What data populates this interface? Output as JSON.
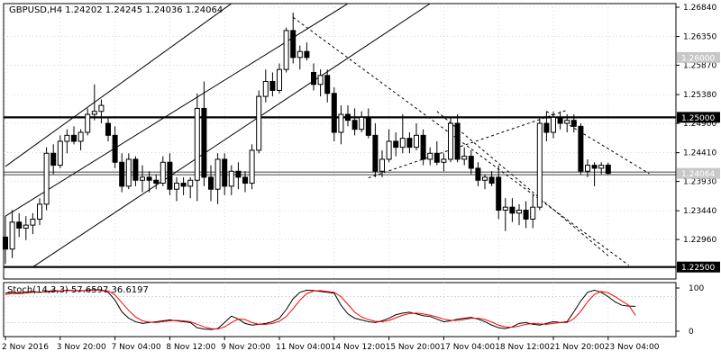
{
  "header": {
    "symbol_line": "GBPUSD,H4  1.24202 1.24245 1.24036 1.24064"
  },
  "colors": {
    "background": "#ffffff",
    "candle": "#000000",
    "grid": "#c0c0c0",
    "stoch_main": "#000000",
    "stoch_signal": "#ff0000",
    "label_bg_gray": "#c8c8c8",
    "label_bg_black": "#000000"
  },
  "chart_data": [
    {
      "type": "candlestick",
      "title": "GBPUSD,H4",
      "ohlc_last": {
        "open": 1.24202,
        "high": 1.24245,
        "low": 1.24036,
        "close": 1.24064
      },
      "ylim": [
        1.223,
        1.269
      ],
      "y_ticks": [
        "1.26840",
        "1.26350",
        "1.25870",
        "1.25380",
        "1.24900",
        "1.24410",
        "1.23930",
        "1.23440",
        "1.22960"
      ],
      "y_tick_values": [
        1.2684,
        1.2635,
        1.2587,
        1.2538,
        1.249,
        1.2441,
        1.2393,
        1.2344,
        1.2296
      ],
      "x_ticks": [
        "2 Nov 2016",
        "3 Nov 20:00",
        "7 Nov 04:00",
        "8 Nov 12:00",
        "9 Nov 20:00",
        "11 Nov 04:00",
        "14 Nov 12:00",
        "15 Nov 20:00",
        "17 Nov 04:00",
        "18 Nov 12:00",
        "21 Nov 20:00",
        "23 Nov 04:00"
      ],
      "x_tick_index": [
        0,
        8,
        16,
        24,
        32,
        40,
        48,
        56,
        64,
        72,
        80,
        88
      ],
      "price_labels": [
        {
          "text": "1.26000",
          "value": 1.26,
          "style": "gray"
        },
        {
          "text": "1.25000",
          "value": 1.25,
          "style": "black"
        },
        {
          "text": "1.24064",
          "value": 1.24064,
          "style": "gray"
        },
        {
          "text": "1.22500",
          "value": 1.225,
          "style": "black"
        }
      ],
      "horizontal_levels": [
        {
          "value": 1.25,
          "style": "thick"
        },
        {
          "value": 1.225,
          "style": "thick"
        },
        {
          "value": 1.24064,
          "style": "double"
        }
      ],
      "trendlines": [
        {
          "style": "solid",
          "from": [
            0,
            1.2418
          ],
          "to": [
            33,
            1.269
          ]
        },
        {
          "style": "solid",
          "from": [
            0,
            1.2335
          ],
          "to": [
            50,
            1.269
          ]
        },
        {
          "style": "solid",
          "from": [
            4,
            1.225
          ],
          "to": [
            62,
            1.269
          ]
        },
        {
          "style": "dashed",
          "from": [
            42,
            1.2667
          ],
          "to": [
            91,
            1.2253
          ]
        },
        {
          "style": "dashed",
          "from": [
            53,
            1.2399
          ],
          "to": [
            82,
            1.2512
          ]
        },
        {
          "style": "dashed",
          "from": [
            63,
            1.251
          ],
          "to": [
            88,
            1.2269
          ]
        },
        {
          "style": "dashed",
          "from": [
            79,
            1.251
          ],
          "to": [
            94,
            1.2406
          ]
        }
      ],
      "candles": [
        [
          1.23,
          1.2335,
          1.2255,
          1.228
        ],
        [
          1.228,
          1.2345,
          1.2265,
          1.2325
        ],
        [
          1.2325,
          1.234,
          1.23,
          1.2315
        ],
        [
          1.2315,
          1.2335,
          1.2295,
          1.232
        ],
        [
          1.232,
          1.234,
          1.2305,
          1.233
        ],
        [
          1.233,
          1.2365,
          1.232,
          1.2355
        ],
        [
          1.2355,
          1.245,
          1.2345,
          1.244
        ],
        [
          1.244,
          1.2455,
          1.2405,
          1.242
        ],
        [
          1.242,
          1.247,
          1.2415,
          1.246
        ],
        [
          1.246,
          1.248,
          1.244,
          1.247
        ],
        [
          1.247,
          1.2485,
          1.2455,
          1.246
        ],
        [
          1.246,
          1.248,
          1.2445,
          1.2475
        ],
        [
          1.2475,
          1.2515,
          1.247,
          1.2505
        ],
        [
          1.2505,
          1.2555,
          1.2495,
          1.251
        ],
        [
          1.251,
          1.253,
          1.249,
          1.252
        ],
        [
          1.249,
          1.25,
          1.246,
          1.247
        ],
        [
          1.247,
          1.2485,
          1.2415,
          1.2425
        ],
        [
          1.2425,
          1.244,
          1.2375,
          1.2385
        ],
        [
          1.2385,
          1.244,
          1.238,
          1.243
        ],
        [
          1.243,
          1.2435,
          1.2385,
          1.2395
        ],
        [
          1.2395,
          1.242,
          1.2375,
          1.24
        ],
        [
          1.24,
          1.241,
          1.2375,
          1.2395
        ],
        [
          1.2395,
          1.2405,
          1.238,
          1.239
        ],
        [
          1.239,
          1.2435,
          1.2385,
          1.2425
        ],
        [
          1.2425,
          1.244,
          1.237,
          1.238
        ],
        [
          1.238,
          1.24,
          1.236,
          1.239
        ],
        [
          1.239,
          1.24,
          1.237,
          1.2385
        ],
        [
          1.2385,
          1.24,
          1.2365,
          1.2395
        ],
        [
          1.2395,
          1.254,
          1.236,
          1.2515
        ],
        [
          1.2515,
          1.256,
          1.2385,
          1.24
        ],
        [
          1.24,
          1.242,
          1.236,
          1.238
        ],
        [
          1.238,
          1.244,
          1.2355,
          1.243
        ],
        [
          1.243,
          1.244,
          1.237,
          1.2385
        ],
        [
          1.2385,
          1.242,
          1.237,
          1.241
        ],
        [
          1.241,
          1.2425,
          1.238,
          1.24
        ],
        [
          1.24,
          1.241,
          1.2375,
          1.239
        ],
        [
          1.239,
          1.2455,
          1.238,
          1.2445
        ],
        [
          1.2445,
          1.2545,
          1.244,
          1.2535
        ],
        [
          1.2535,
          1.258,
          1.2525,
          1.256
        ],
        [
          1.256,
          1.2575,
          1.2535,
          1.2545
        ],
        [
          1.2545,
          1.259,
          1.254,
          1.258
        ],
        [
          1.258,
          1.265,
          1.2575,
          1.2645
        ],
        [
          1.2645,
          1.2675,
          1.259,
          1.26
        ],
        [
          1.26,
          1.262,
          1.258,
          1.261
        ],
        [
          1.261,
          1.2625,
          1.2595,
          1.26
        ],
        [
          1.2575,
          1.259,
          1.2545,
          1.2555
        ],
        [
          1.2555,
          1.258,
          1.2535,
          1.257
        ],
        [
          1.257,
          1.258,
          1.2525,
          1.254
        ],
        [
          1.254,
          1.255,
          1.246,
          1.2475
        ],
        [
          1.2475,
          1.252,
          1.2455,
          1.2505
        ],
        [
          1.2505,
          1.252,
          1.2485,
          1.2495
        ],
        [
          1.2495,
          1.2515,
          1.247,
          1.248
        ],
        [
          1.248,
          1.251,
          1.2475,
          1.25
        ],
        [
          1.25,
          1.2515,
          1.2465,
          1.247
        ],
        [
          1.247,
          1.249,
          1.24,
          1.241
        ],
        [
          1.241,
          1.2445,
          1.24,
          1.243
        ],
        [
          1.243,
          1.248,
          1.2425,
          1.246
        ],
        [
          1.246,
          1.2475,
          1.2435,
          1.245
        ],
        [
          1.245,
          1.2505,
          1.244,
          1.2465
        ],
        [
          1.2465,
          1.2475,
          1.244,
          1.245
        ],
        [
          1.245,
          1.249,
          1.2445,
          1.247
        ],
        [
          1.247,
          1.248,
          1.242,
          1.243
        ],
        [
          1.243,
          1.245,
          1.242,
          1.244
        ],
        [
          1.244,
          1.246,
          1.242,
          1.2425
        ],
        [
          1.2425,
          1.244,
          1.241,
          1.243
        ],
        [
          1.243,
          1.25,
          1.2425,
          1.249
        ],
        [
          1.249,
          1.2505,
          1.2425,
          1.243
        ],
        [
          1.243,
          1.245,
          1.242,
          1.2435
        ],
        [
          1.2435,
          1.2445,
          1.2405,
          1.2415
        ],
        [
          1.2415,
          1.2425,
          1.2385,
          1.2395
        ],
        [
          1.2395,
          1.2405,
          1.238,
          1.24
        ],
        [
          1.24,
          1.241,
          1.2385,
          1.239
        ],
        [
          1.24,
          1.242,
          1.233,
          1.2345
        ],
        [
          1.2345,
          1.2365,
          1.231,
          1.235
        ],
        [
          1.235,
          1.2365,
          1.2325,
          1.234
        ],
        [
          1.234,
          1.2355,
          1.232,
          1.2345
        ],
        [
          1.2345,
          1.236,
          1.2315,
          1.233
        ],
        [
          1.233,
          1.237,
          1.2315,
          1.235
        ],
        [
          1.235,
          1.25,
          1.2345,
          1.249
        ],
        [
          1.249,
          1.251,
          1.246,
          1.2475
        ],
        [
          1.2475,
          1.251,
          1.2465,
          1.25
        ],
        [
          1.25,
          1.251,
          1.248,
          1.249
        ],
        [
          1.249,
          1.2505,
          1.2475,
          1.2495
        ],
        [
          1.2495,
          1.2505,
          1.2475,
          1.2485
        ],
        [
          1.2485,
          1.249,
          1.2405,
          1.241
        ],
        [
          1.241,
          1.243,
          1.24,
          1.242
        ],
        [
          1.242,
          1.2425,
          1.2385,
          1.2415
        ],
        [
          1.2415,
          1.2425,
          1.2405,
          1.242
        ],
        [
          1.24202,
          1.24245,
          1.24036,
          1.24064
        ]
      ]
    },
    {
      "type": "line",
      "title": "Stoch(14,3,3) 57.6597 36.6197",
      "indicator_label": "Stoch(14,3,3) 57.6597 36.6197",
      "ylim": [
        0,
        100
      ],
      "y_ticks": [
        "100",
        "0"
      ],
      "y_tick_values": [
        100,
        0
      ],
      "series": [
        {
          "values": [
            88,
            90,
            88,
            91,
            92,
            90,
            92,
            94,
            93,
            95,
            94,
            93,
            95,
            96,
            95,
            90,
            72,
            45,
            30,
            22,
            18,
            20,
            22,
            24,
            26,
            24,
            22,
            20,
            8,
            5,
            4,
            6,
            20,
            35,
            28,
            18,
            14,
            16,
            18,
            22,
            30,
            50,
            75,
            90,
            95,
            94,
            92,
            90,
            88,
            60,
            40,
            30,
            26,
            22,
            20,
            24,
            30,
            38,
            42,
            44,
            40,
            36,
            34,
            28,
            22,
            24,
            28,
            30,
            32,
            28,
            22,
            14,
            8,
            6,
            10,
            18,
            20,
            16,
            14,
            18,
            22,
            20,
            22,
            45,
            70,
            90,
            95,
            90,
            80,
            68,
            60,
            58,
            57.6597
          ]
        },
        {
          "values": [
            85,
            87,
            87,
            88,
            90,
            90,
            91,
            92,
            93,
            94,
            94,
            94,
            94,
            95,
            95,
            93,
            84,
            66,
            48,
            33,
            24,
            21,
            20,
            22,
            24,
            25,
            24,
            22,
            16,
            10,
            6,
            5,
            10,
            20,
            28,
            27,
            20,
            16,
            16,
            18,
            23,
            34,
            52,
            72,
            87,
            93,
            94,
            92,
            90,
            80,
            62,
            44,
            33,
            27,
            23,
            22,
            25,
            31,
            37,
            41,
            42,
            40,
            37,
            33,
            28,
            25,
            25,
            27,
            30,
            30,
            27,
            21,
            14,
            10,
            9,
            12,
            16,
            18,
            17,
            16,
            18,
            20,
            20,
            29,
            46,
            68,
            85,
            92,
            89,
            80,
            70,
            60,
            36.6197
          ]
        }
      ]
    }
  ]
}
